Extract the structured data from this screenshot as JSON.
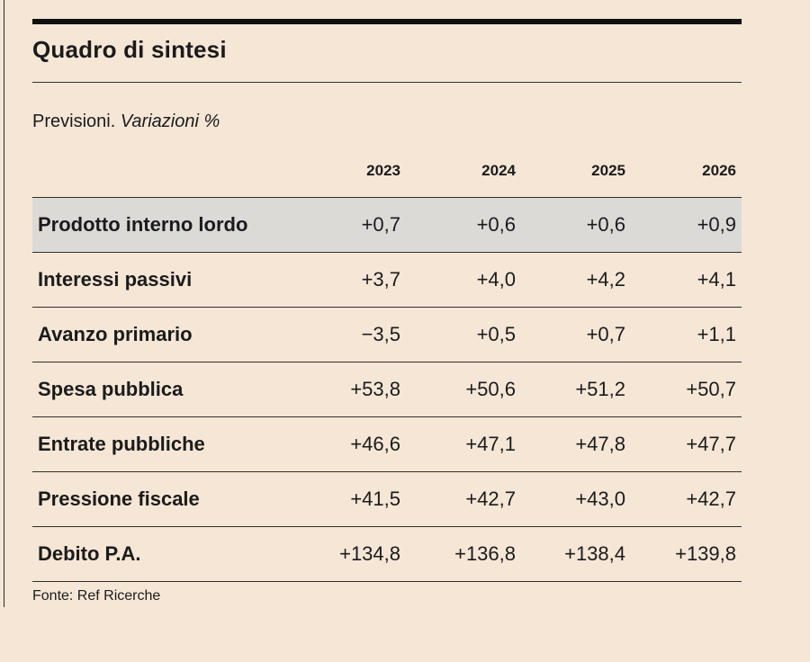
{
  "title": "Quadro di sintesi",
  "subtitle": {
    "lead": "Previsioni. ",
    "italic": "Variazioni %"
  },
  "source": "Fonte: Ref Ricerche",
  "chart_data": {
    "type": "table",
    "title": "Quadro di sintesi",
    "subtitle": "Previsioni. Variazioni %",
    "columns": [
      "2023",
      "2024",
      "2025",
      "2026"
    ],
    "rows": [
      {
        "label": "Prodotto interno lordo",
        "values": [
          "+0,7",
          "+0,6",
          "+0,6",
          "+0,9"
        ],
        "highlight": true
      },
      {
        "label": "Interessi passivi",
        "values": [
          "+3,7",
          "+4,0",
          "+4,2",
          "+4,1"
        ]
      },
      {
        "label": "Avanzo primario",
        "values": [
          "−3,5",
          "+0,5",
          "+0,7",
          "+1,1"
        ]
      },
      {
        "label": "Spesa pubblica",
        "values": [
          "+53,8",
          "+50,6",
          "+51,2",
          "+50,7"
        ]
      },
      {
        "label": "Entrate pubbliche",
        "values": [
          "+46,6",
          "+47,1",
          "+47,8",
          "+47,7"
        ]
      },
      {
        "label": "Pressione fiscale",
        "values": [
          "+41,5",
          "+42,7",
          "+43,0",
          "+42,7"
        ]
      },
      {
        "label": "Debito P.A.",
        "values": [
          "+134,8",
          "+136,8",
          "+138,4",
          "+139,8"
        ]
      }
    ],
    "source": "Fonte: Ref Ricerche"
  }
}
